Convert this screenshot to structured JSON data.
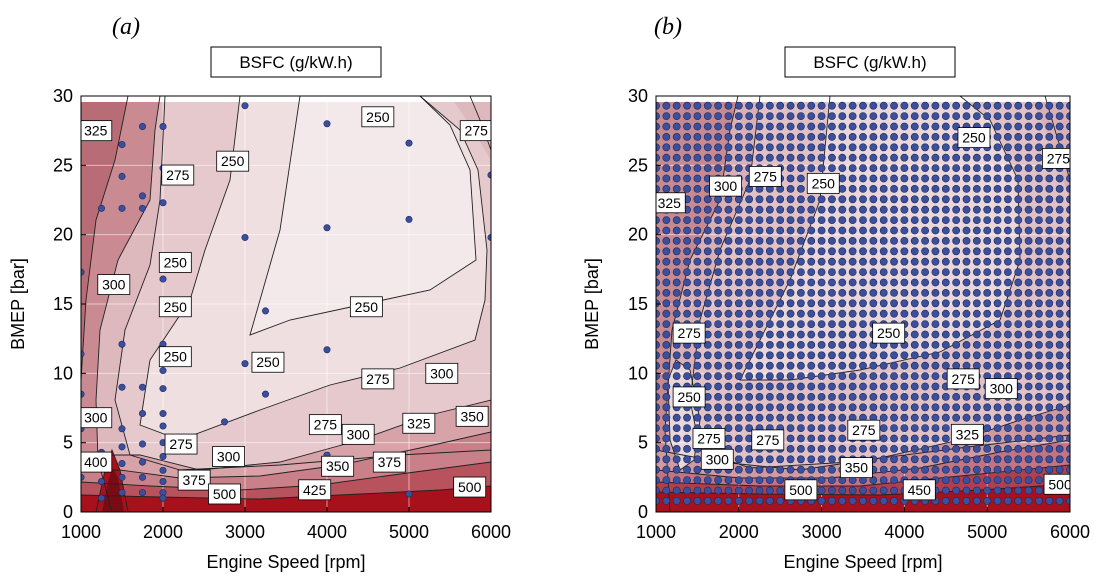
{
  "chart_data": [
    {
      "panel_label": "(a)",
      "type": "contour",
      "title": "BSFC (g/kW.h)",
      "xlabel": "Engine Speed [rpm]",
      "ylabel": "BMEP [bar]",
      "xlim": [
        1000,
        6000
      ],
      "ylim": [
        0,
        30
      ],
      "xticks": [
        1000,
        2000,
        3000,
        4000,
        5000,
        6000
      ],
      "yticks": [
        0,
        5,
        10,
        15,
        20,
        25,
        30
      ],
      "grid": true,
      "colors": {
        "low": "#f2e5e7",
        "mid": "#d6a9ae",
        "high": "#a8101c",
        "points": "#3b4f9a",
        "line": "#222222"
      },
      "contour_labels": [
        {
          "text": "325",
          "x": 1180,
          "y": 27.5
        },
        {
          "text": "250",
          "x": 4620,
          "y": 28.5
        },
        {
          "text": "275",
          "x": 5820,
          "y": 27.5
        },
        {
          "text": "250",
          "x": 2850,
          "y": 25.3
        },
        {
          "text": "275",
          "x": 2180,
          "y": 24.3
        },
        {
          "text": "250",
          "x": 2150,
          "y": 18.0
        },
        {
          "text": "300",
          "x": 1400,
          "y": 16.4
        },
        {
          "text": "250",
          "x": 2150,
          "y": 14.8
        },
        {
          "text": "250",
          "x": 4480,
          "y": 14.8
        },
        {
          "text": "250",
          "x": 2150,
          "y": 11.2
        },
        {
          "text": "250",
          "x": 3280,
          "y": 10.8
        },
        {
          "text": "275",
          "x": 4620,
          "y": 9.6
        },
        {
          "text": "300",
          "x": 5400,
          "y": 10.0
        },
        {
          "text": "300",
          "x": 1180,
          "y": 6.8
        },
        {
          "text": "275",
          "x": 2220,
          "y": 4.9
        },
        {
          "text": "350",
          "x": 5770,
          "y": 6.9
        },
        {
          "text": "325",
          "x": 5120,
          "y": 6.4
        },
        {
          "text": "275",
          "x": 3980,
          "y": 6.3
        },
        {
          "text": "300",
          "x": 4380,
          "y": 5.6
        },
        {
          "text": "400",
          "x": 1180,
          "y": 3.6
        },
        {
          "text": "300",
          "x": 2800,
          "y": 4.0
        },
        {
          "text": "375",
          "x": 4760,
          "y": 3.6
        },
        {
          "text": "350",
          "x": 4130,
          "y": 3.3
        },
        {
          "text": "375",
          "x": 2380,
          "y": 2.3
        },
        {
          "text": "425",
          "x": 3850,
          "y": 1.6
        },
        {
          "text": "500",
          "x": 2750,
          "y": 1.3
        },
        {
          "text": "500",
          "x": 5740,
          "y": 1.8
        }
      ],
      "points": [
        [
          1000,
          17.3
        ],
        [
          1000,
          11.4
        ],
        [
          1000,
          8.5
        ],
        [
          1000,
          6.0
        ],
        [
          1000,
          4.0
        ],
        [
          1000,
          2.5
        ],
        [
          1250,
          4.3
        ],
        [
          1250,
          2.2
        ],
        [
          1250,
          1.0
        ],
        [
          1250,
          21.9
        ],
        [
          1500,
          26.5
        ],
        [
          1500,
          24.2
        ],
        [
          1500,
          21.9
        ],
        [
          1500,
          12.1
        ],
        [
          1500,
          9.0
        ],
        [
          1500,
          6.0
        ],
        [
          1500,
          4.7
        ],
        [
          1500,
          3.5
        ],
        [
          1500,
          2.5
        ],
        [
          1500,
          1.4
        ],
        [
          1750,
          27.8
        ],
        [
          1750,
          22.8
        ],
        [
          1750,
          21.9
        ],
        [
          1750,
          9.0
        ],
        [
          1750,
          7.1
        ],
        [
          1750,
          4.9
        ],
        [
          1750,
          3.6
        ],
        [
          1750,
          2.5
        ],
        [
          1750,
          1.4
        ],
        [
          2000,
          27.8
        ],
        [
          2000,
          24.8
        ],
        [
          2000,
          22.3
        ],
        [
          2000,
          16.8
        ],
        [
          2000,
          12.1
        ],
        [
          2000,
          10.2
        ],
        [
          2000,
          8.9
        ],
        [
          2000,
          7.1
        ],
        [
          2000,
          6.2
        ],
        [
          2000,
          5.0
        ],
        [
          2000,
          4.0
        ],
        [
          2000,
          3.0
        ],
        [
          2000,
          2.2
        ],
        [
          2000,
          1.4
        ],
        [
          2000,
          1.0
        ],
        [
          2750,
          6.5
        ],
        [
          2750,
          3.5
        ],
        [
          3000,
          29.3
        ],
        [
          3000,
          19.8
        ],
        [
          3000,
          10.7
        ],
        [
          3250,
          14.5
        ],
        [
          3250,
          8.5
        ],
        [
          4000,
          28.0
        ],
        [
          4000,
          20.5
        ],
        [
          4000,
          11.7
        ],
        [
          4000,
          4.1
        ],
        [
          4000,
          1.6
        ],
        [
          5000,
          26.6
        ],
        [
          5000,
          21.1
        ],
        [
          5000,
          1.3
        ],
        [
          6000,
          24.3
        ],
        [
          6000,
          19.8
        ]
      ]
    },
    {
      "panel_label": "(b)",
      "type": "contour",
      "title": "BSFC (g/kW.h)",
      "xlabel": "Engine Speed [rpm]",
      "ylabel": "BMEP [bar]",
      "xlim": [
        1000,
        6000
      ],
      "ylim": [
        0,
        30
      ],
      "xticks": [
        1000,
        2000,
        3000,
        4000,
        5000,
        6000
      ],
      "yticks": [
        0,
        5,
        10,
        15,
        20,
        25,
        30
      ],
      "grid": true,
      "colors": {
        "low": "#f2e5e7",
        "mid": "#d6a9ae",
        "high": "#a8101c",
        "points": "#3b4f9a",
        "line": "#222222"
      },
      "contour_labels": [
        {
          "text": "250",
          "x": 4840,
          "y": 27.0
        },
        {
          "text": "275",
          "x": 5860,
          "y": 25.5
        },
        {
          "text": "325",
          "x": 1160,
          "y": 22.3
        },
        {
          "text": "300",
          "x": 1840,
          "y": 23.5
        },
        {
          "text": "275",
          "x": 2320,
          "y": 24.2
        },
        {
          "text": "250",
          "x": 3020,
          "y": 23.7
        },
        {
          "text": "275",
          "x": 1400,
          "y": 12.9
        },
        {
          "text": "250",
          "x": 3810,
          "y": 12.9
        },
        {
          "text": "275",
          "x": 4710,
          "y": 9.6
        },
        {
          "text": "300",
          "x": 5170,
          "y": 8.9
        },
        {
          "text": "250",
          "x": 1400,
          "y": 8.3
        },
        {
          "text": "275",
          "x": 1640,
          "y": 5.3
        },
        {
          "text": "275",
          "x": 2350,
          "y": 5.2
        },
        {
          "text": "275",
          "x": 3510,
          "y": 5.9
        },
        {
          "text": "325",
          "x": 4760,
          "y": 5.6
        },
        {
          "text": "300",
          "x": 1740,
          "y": 3.8
        },
        {
          "text": "350",
          "x": 3420,
          "y": 3.2
        },
        {
          "text": "500",
          "x": 2750,
          "y": 1.6
        },
        {
          "text": "450",
          "x": 4180,
          "y": 1.6
        },
        {
          "text": "500",
          "x": 5880,
          "y": 2.0
        }
      ],
      "points_grid": {
        "x_start": 1000,
        "x_end": 6000,
        "x_step": 125,
        "y_start": 0.8,
        "y_end": 29.3,
        "y_step": 0.75
      }
    }
  ]
}
